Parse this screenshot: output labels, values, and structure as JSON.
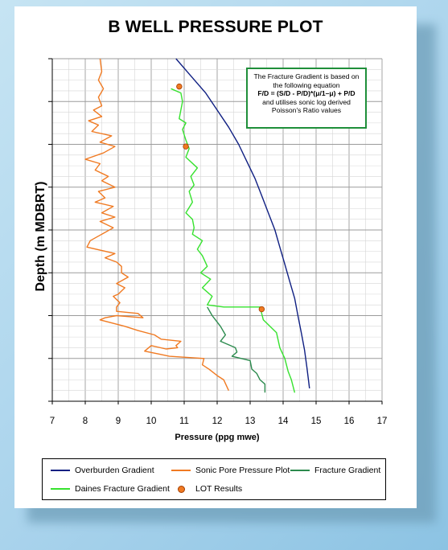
{
  "chart_data": {
    "type": "line",
    "title": "B WELL PRESSURE PLOT",
    "xlabel": "Pressure (ppg mwe)",
    "ylabel": "Depth (m MDBRT)",
    "xlim": [
      7,
      17
    ],
    "ylim": [
      8,
      0
    ],
    "xticks": [
      "7",
      "8",
      "9",
      "10",
      "11",
      "12",
      "13",
      "14",
      "15",
      "16",
      "17"
    ],
    "grid": true,
    "legend_position": "bottom",
    "annotation": {
      "lines": [
        "The Fracture Gradient is based on",
        "the following equation",
        "F/D = (S/D - P/D)*(μ/1–μ) + P/D",
        "and utilises sonic log derived",
        "Poisson's Ratio values"
      ]
    },
    "series": [
      {
        "name": "Overburden Gradient",
        "color": "#0f1f82",
        "points": [
          [
            10.75,
            0
          ],
          [
            11.2,
            0.4
          ],
          [
            11.65,
            0.8
          ],
          [
            12.0,
            1.2
          ],
          [
            12.35,
            1.6
          ],
          [
            12.65,
            2.0
          ],
          [
            12.9,
            2.4
          ],
          [
            13.15,
            2.8
          ],
          [
            13.35,
            3.2
          ],
          [
            13.55,
            3.6
          ],
          [
            13.75,
            4.0
          ],
          [
            13.9,
            4.4
          ],
          [
            14.05,
            4.8
          ],
          [
            14.2,
            5.2
          ],
          [
            14.35,
            5.6
          ],
          [
            14.45,
            6.0
          ],
          [
            14.55,
            6.4
          ],
          [
            14.65,
            6.8
          ],
          [
            14.72,
            7.2
          ],
          [
            14.8,
            7.7
          ]
        ]
      },
      {
        "name": "Sonic Pore Pressure Plot",
        "color": "#f07a22",
        "points": [
          [
            8.45,
            0
          ],
          [
            8.5,
            0.3
          ],
          [
            8.4,
            0.5
          ],
          [
            8.55,
            0.7
          ],
          [
            8.4,
            0.9
          ],
          [
            8.5,
            1.1
          ],
          [
            8.25,
            1.2
          ],
          [
            8.5,
            1.35
          ],
          [
            8.1,
            1.45
          ],
          [
            8.4,
            1.55
          ],
          [
            8.2,
            1.7
          ],
          [
            8.8,
            1.8
          ],
          [
            8.45,
            1.95
          ],
          [
            8.9,
            2.05
          ],
          [
            8.55,
            2.2
          ],
          [
            8.0,
            2.35
          ],
          [
            8.45,
            2.45
          ],
          [
            8.3,
            2.6
          ],
          [
            8.7,
            2.75
          ],
          [
            8.5,
            2.85
          ],
          [
            8.9,
            3.0
          ],
          [
            8.4,
            3.1
          ],
          [
            8.6,
            3.25
          ],
          [
            8.3,
            3.35
          ],
          [
            8.85,
            3.45
          ],
          [
            8.5,
            3.6
          ],
          [
            8.9,
            3.7
          ],
          [
            8.45,
            3.8
          ],
          [
            8.85,
            3.95
          ],
          [
            8.5,
            4.1
          ],
          [
            8.15,
            4.25
          ],
          [
            8.05,
            4.4
          ],
          [
            8.9,
            4.55
          ],
          [
            8.6,
            4.65
          ],
          [
            8.95,
            4.75
          ],
          [
            9.1,
            4.85
          ],
          [
            9.1,
            5.0
          ],
          [
            9.3,
            5.1
          ],
          [
            8.95,
            5.25
          ],
          [
            9.2,
            5.35
          ],
          [
            9.0,
            5.5
          ],
          [
            8.85,
            5.55
          ],
          [
            9.05,
            5.7
          ],
          [
            8.95,
            5.8
          ],
          [
            8.95,
            5.9
          ],
          [
            9.6,
            5.95
          ],
          [
            9.75,
            6.05
          ],
          [
            8.95,
            6.0
          ],
          [
            8.6,
            6.05
          ],
          [
            8.45,
            6.1
          ],
          [
            9.2,
            6.25
          ],
          [
            9.6,
            6.35
          ],
          [
            10.1,
            6.45
          ],
          [
            10.3,
            6.55
          ],
          [
            10.9,
            6.6
          ],
          [
            10.75,
            6.7
          ],
          [
            10.8,
            6.75
          ],
          [
            10.45,
            6.78
          ],
          [
            10.0,
            6.7
          ],
          [
            9.8,
            6.83
          ],
          [
            10.25,
            6.9
          ],
          [
            10.55,
            6.95
          ],
          [
            11.6,
            7.0
          ],
          [
            11.55,
            7.15
          ],
          [
            11.75,
            7.25
          ],
          [
            12.0,
            7.4
          ],
          [
            12.2,
            7.5
          ],
          [
            12.35,
            7.75
          ]
        ]
      },
      {
        "name": "Fracture Gradient",
        "color": "#2b8a4d",
        "points": [
          [
            11.7,
            5.8
          ],
          [
            11.85,
            6.0
          ],
          [
            12.1,
            6.25
          ],
          [
            12.25,
            6.45
          ],
          [
            12.1,
            6.6
          ],
          [
            12.55,
            6.75
          ],
          [
            12.6,
            6.85
          ],
          [
            12.45,
            6.95
          ],
          [
            13.0,
            7.05
          ],
          [
            13.05,
            7.25
          ],
          [
            13.2,
            7.35
          ],
          [
            13.3,
            7.5
          ],
          [
            13.45,
            7.6
          ],
          [
            13.45,
            7.8
          ]
        ]
      },
      {
        "name": "Daines Fracture Gradient",
        "color": "#36e22e",
        "points": [
          [
            10.6,
            0.7
          ],
          [
            10.9,
            0.8
          ],
          [
            10.95,
            1.0
          ],
          [
            10.85,
            1.4
          ],
          [
            11.05,
            1.5
          ],
          [
            10.95,
            1.65
          ],
          [
            11.05,
            1.9
          ],
          [
            11.15,
            2.1
          ],
          [
            11.05,
            2.3
          ],
          [
            11.4,
            2.55
          ],
          [
            11.2,
            2.75
          ],
          [
            11.3,
            2.95
          ],
          [
            11.15,
            3.1
          ],
          [
            11.25,
            3.35
          ],
          [
            11.05,
            3.6
          ],
          [
            11.25,
            3.75
          ],
          [
            11.3,
            3.95
          ],
          [
            11.25,
            4.1
          ],
          [
            11.55,
            4.25
          ],
          [
            11.4,
            4.45
          ],
          [
            11.55,
            4.6
          ],
          [
            11.7,
            4.85
          ],
          [
            11.5,
            5.0
          ],
          [
            11.8,
            5.15
          ],
          [
            11.55,
            5.35
          ],
          [
            11.85,
            5.55
          ],
          [
            11.7,
            5.75
          ],
          [
            12.2,
            5.8
          ],
          [
            13.3,
            5.8
          ],
          [
            13.4,
            6.1
          ],
          [
            13.8,
            6.4
          ],
          [
            13.9,
            6.75
          ],
          [
            14.05,
            7.0
          ],
          [
            14.15,
            7.3
          ],
          [
            14.25,
            7.5
          ],
          [
            14.35,
            7.8
          ]
        ]
      },
      {
        "name": "LOT Results",
        "color": "#f07a22",
        "marker": "circle",
        "points": [
          [
            10.85,
            0.65
          ],
          [
            11.05,
            2.05
          ],
          [
            13.35,
            5.85
          ]
        ]
      }
    ]
  }
}
